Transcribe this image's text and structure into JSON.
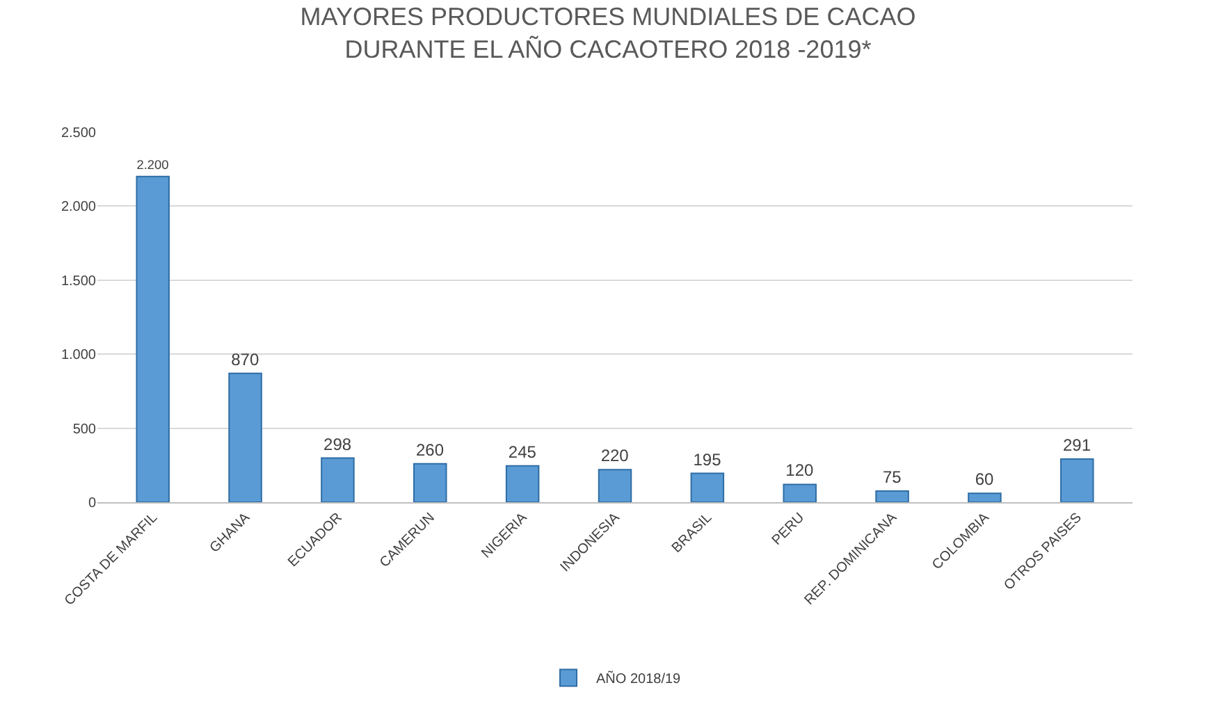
{
  "chart_data": {
    "type": "bar",
    "title": "MAYORES PRODUCTORES MUNDIALES DE CACAO\nDURANTE EL AÑO CACAOTERO 2018 -2019*",
    "categories": [
      "COSTA DE MARFIL",
      "GHANA",
      "ECUADOR",
      "CAMERUN",
      "NIGERIA",
      "INDONESIA",
      "BRASIL",
      "PERU",
      "REP. DOMINICANA",
      "COLOMBIA",
      "OTROS PAISES"
    ],
    "series": [
      {
        "name": "AÑO 2018/19",
        "color": "#5b9bd5",
        "values": [
          2200,
          870,
          298,
          260,
          245,
          220,
          195,
          120,
          75,
          60,
          291
        ]
      }
    ],
    "ylim": [
      0,
      2500
    ],
    "yticks": [
      {
        "value": 0,
        "label": "0"
      },
      {
        "value": 500,
        "label": "500"
      },
      {
        "value": 1000,
        "label": "1.000"
      },
      {
        "value": 1500,
        "label": "1.500"
      },
      {
        "value": 2000,
        "label": "2.000"
      },
      {
        "value": 2500,
        "label": "2.500"
      }
    ],
    "grid": "y",
    "legend": "bottom",
    "value_labels": [
      "2.200",
      "870",
      "298",
      "260",
      "245",
      "220",
      "195",
      "120",
      "75",
      "60",
      "291"
    ]
  }
}
